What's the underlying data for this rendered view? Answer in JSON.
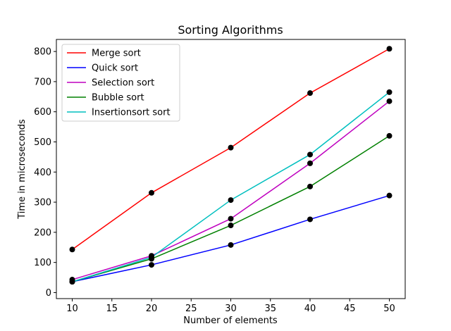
{
  "chart_data": {
    "type": "line",
    "title": "Sorting Algorithms",
    "xlabel": "Number of elements",
    "ylabel": "Time in microseconds",
    "x": [
      10,
      20,
      30,
      40,
      50
    ],
    "xlim": [
      8,
      52
    ],
    "ylim": [
      -20,
      840
    ],
    "xticks": [
      10,
      15,
      20,
      25,
      30,
      35,
      40,
      45,
      50
    ],
    "yticks": [
      0,
      100,
      200,
      300,
      400,
      500,
      600,
      700,
      800
    ],
    "grid": false,
    "legend_position": "top-left",
    "marker_color": "#000000",
    "series": [
      {
        "name": "Merge sort",
        "color": "#ff0000",
        "values": [
          143,
          331,
          481,
          662,
          809
        ]
      },
      {
        "name": "Quick sort",
        "color": "#0000ff",
        "values": [
          36,
          92,
          158,
          243,
          322
        ]
      },
      {
        "name": "Selection sort",
        "color": "#bf00bf",
        "values": [
          43,
          122,
          245,
          429,
          635
        ]
      },
      {
        "name": "Bubble sort",
        "color": "#008000",
        "values": [
          36,
          112,
          223,
          352,
          520
        ]
      },
      {
        "name": "Insertionsort sort",
        "color": "#00bfbf",
        "values": [
          36,
          117,
          307,
          458,
          665
        ]
      }
    ]
  }
}
